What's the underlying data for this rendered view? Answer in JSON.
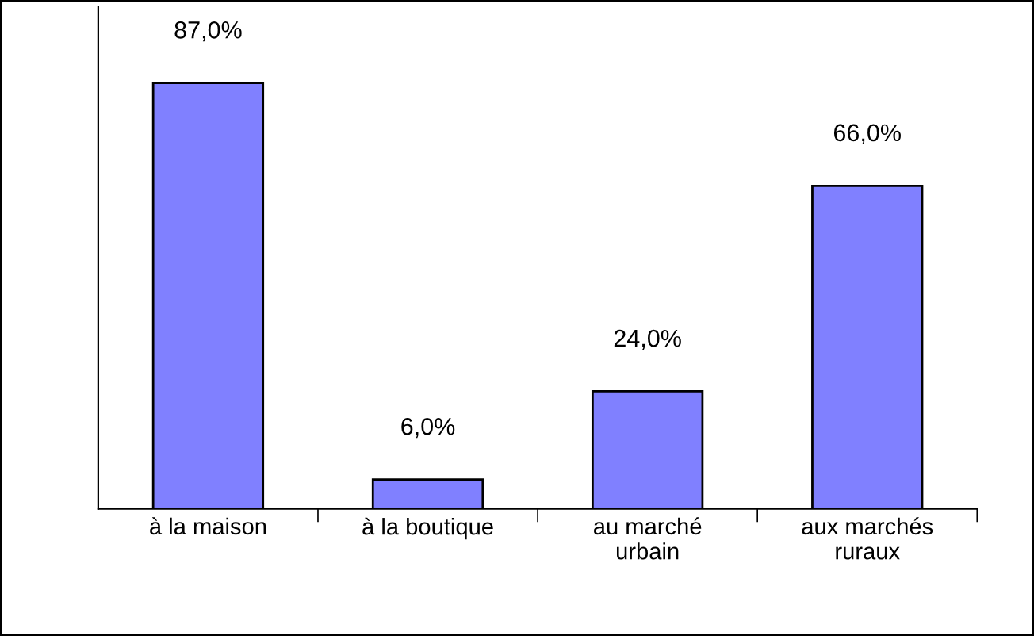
{
  "chart_data": {
    "type": "bar",
    "categories": [
      "à la maison",
      "à la boutique",
      "au marché\nurbain",
      "aux marchés\nruraux"
    ],
    "values": [
      87,
      6,
      24,
      66
    ],
    "value_labels": [
      "87,0%",
      "6,0%",
      "24,0%",
      "66,0%"
    ],
    "color": "#8080ff",
    "grid": false,
    "legend": false
  }
}
